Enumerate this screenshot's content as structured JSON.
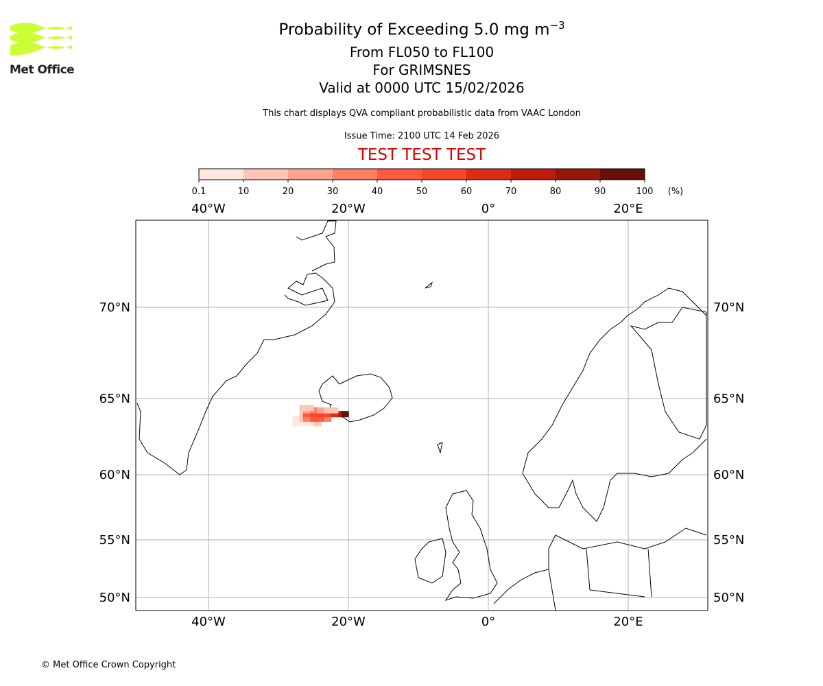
{
  "header": {
    "title": "Probability of Exceeding 5.0 mg m",
    "title_sup": "−3",
    "line1": "From FL050 to FL100",
    "line2": "For GRIMSNES",
    "line3": "Valid at 0000 UTC 15/02/2026",
    "disclaimer": "This chart displays QVA compliant probabilistic data from VAAC London",
    "issue_time": "Issue Time: 2100 UTC 14 Feb 2026",
    "test_banner": "TEST TEST TEST"
  },
  "logo": {
    "text": "Met Office",
    "color": "#ccff33"
  },
  "footer": {
    "copyright": "© Met Office Crown Copyright"
  },
  "colors": {
    "test": "#e00000"
  },
  "chart_data": {
    "type": "heatmap",
    "title": "Probability of Exceeding 5.0 mg m−3",
    "colorbar": {
      "ticks": [
        "0.1",
        "10",
        "20",
        "30",
        "40",
        "50",
        "60",
        "70",
        "80",
        "90",
        "100"
      ],
      "unit": "(%)",
      "colors": [
        "#fee8e0",
        "#fdc6b6",
        "#fca38d",
        "#fc8062",
        "#fb5a3e",
        "#f3462a",
        "#dd2c15",
        "#bd1b0b",
        "#941709",
        "#67100a"
      ]
    },
    "lon_ticks": [
      "40°W",
      "20°W",
      "0°",
      "20°E"
    ],
    "lat_ticks": [
      "70°N",
      "65°N",
      "60°N",
      "55°N",
      "50°N"
    ],
    "lon_range": [
      -50,
      31
    ],
    "lat_range": [
      49,
      74
    ],
    "plume": [
      {
        "lon": -24.5,
        "lat": 63.9,
        "prob": 5
      },
      {
        "lon": -22,
        "lat": 64.0,
        "prob": 35
      },
      {
        "lon": -23.5,
        "lat": 63.9,
        "prob": 55
      },
      {
        "lon": -21,
        "lat": 64.0,
        "prob": 75
      },
      {
        "lon": -20.5,
        "lat": 64.0,
        "prob": 95
      }
    ]
  }
}
